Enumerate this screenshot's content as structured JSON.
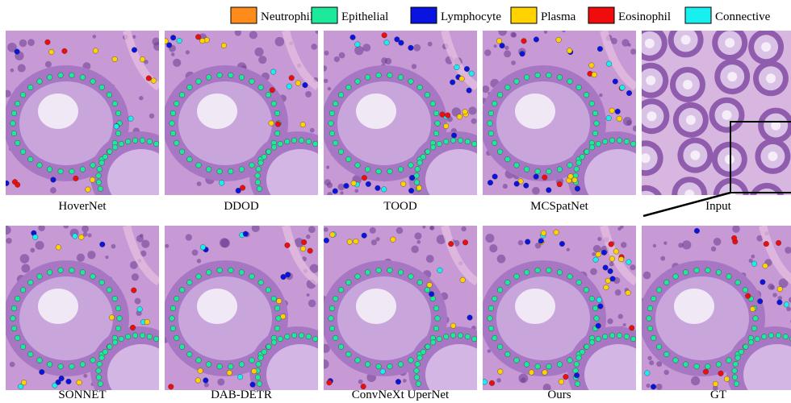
{
  "legend": [
    {
      "label": "Neutrophil",
      "color": "#ff8c1a"
    },
    {
      "label": "Epithelial",
      "color": "#1de99a"
    },
    {
      "label": "Lymphocyte",
      "color": "#0a14e0"
    },
    {
      "label": "Plasma",
      "color": "#ffd200"
    },
    {
      "label": "Eosinophil",
      "color": "#f00c0c"
    },
    {
      "label": "Connective",
      "color": "#18f0f0"
    }
  ],
  "panels": [
    {
      "caption": "HoverNet"
    },
    {
      "caption": "DDOD"
    },
    {
      "caption": "TOOD"
    },
    {
      "caption": "MCSpatNet"
    },
    {
      "caption": "Input"
    },
    {
      "caption": "SONNET"
    },
    {
      "caption": "DAB-DETR"
    },
    {
      "caption": "ConvNeXt UperNet"
    },
    {
      "caption": "Ours"
    },
    {
      "caption": "GT"
    }
  ]
}
